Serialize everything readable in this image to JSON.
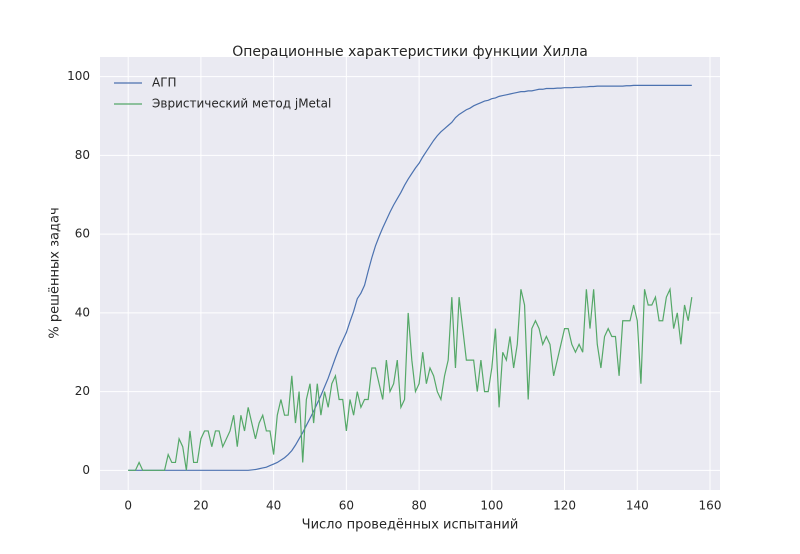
{
  "chart_data": {
    "type": "line",
    "title": "Операционные характеристики функции Хилла",
    "xlabel": "Число проведённых испытаний",
    "ylabel": "% решённых задач",
    "x": [
      0,
      1,
      2,
      3,
      4,
      5,
      6,
      7,
      8,
      9,
      10,
      11,
      12,
      13,
      14,
      15,
      16,
      17,
      18,
      19,
      20,
      21,
      22,
      23,
      24,
      25,
      26,
      27,
      28,
      29,
      30,
      31,
      32,
      33,
      34,
      35,
      36,
      37,
      38,
      39,
      40,
      41,
      42,
      43,
      44,
      45,
      46,
      47,
      48,
      49,
      50,
      51,
      52,
      53,
      54,
      55,
      56,
      57,
      58,
      59,
      60,
      61,
      62,
      63,
      64,
      65,
      66,
      67,
      68,
      69,
      70,
      71,
      72,
      73,
      74,
      75,
      76,
      77,
      78,
      79,
      80,
      81,
      82,
      83,
      84,
      85,
      86,
      87,
      88,
      89,
      90,
      91,
      92,
      93,
      94,
      95,
      96,
      97,
      98,
      99,
      100,
      101,
      102,
      103,
      104,
      105,
      106,
      107,
      108,
      109,
      110,
      111,
      112,
      113,
      114,
      115,
      116,
      117,
      118,
      119,
      120,
      121,
      122,
      123,
      124,
      125,
      126,
      127,
      128,
      129,
      130,
      131,
      132,
      133,
      134,
      135,
      136,
      137,
      138,
      139,
      140,
      141,
      142,
      143,
      144,
      145,
      146,
      147,
      148,
      149,
      150,
      151,
      152,
      153,
      154,
      155
    ],
    "series": [
      {
        "name": "АГП",
        "color": "#4c72b0",
        "values": [
          0,
          0,
          0,
          0,
          0,
          0,
          0,
          0,
          0,
          0,
          0,
          0,
          0,
          0,
          0,
          0,
          0,
          0,
          0,
          0,
          0,
          0,
          0,
          0,
          0,
          0,
          0,
          0,
          0,
          0,
          0,
          0,
          0,
          0,
          0.1,
          0.2,
          0.4,
          0.6,
          0.8,
          1.2,
          1.6,
          2,
          2.6,
          3.2,
          4,
          5,
          6.4,
          8,
          9.6,
          11.4,
          13.2,
          15,
          17,
          19,
          21.2,
          23.4,
          26,
          28.6,
          31,
          33,
          35,
          37.8,
          40.4,
          43.6,
          45,
          47,
          50.6,
          54,
          57,
          59.4,
          61.6,
          63.6,
          65.6,
          67.4,
          69,
          70.6,
          72.4,
          74,
          75.4,
          76.8,
          78,
          79.6,
          81,
          82.4,
          83.8,
          85,
          86,
          86.8,
          87.6,
          88.4,
          89.6,
          90.4,
          91,
          91.6,
          92,
          92.6,
          93,
          93.4,
          93.8,
          94,
          94.4,
          94.6,
          95,
          95.2,
          95.4,
          95.6,
          95.8,
          96,
          96.2,
          96.2,
          96.4,
          96.4,
          96.6,
          96.8,
          96.8,
          97,
          97,
          97,
          97.1,
          97.1,
          97.2,
          97.2,
          97.2,
          97.3,
          97.3,
          97.4,
          97.4,
          97.5,
          97.5,
          97.6,
          97.6,
          97.6,
          97.6,
          97.6,
          97.6,
          97.6,
          97.6,
          97.7,
          97.7,
          97.8,
          97.8,
          97.8,
          97.8,
          97.8,
          97.8,
          97.8,
          97.8,
          97.8,
          97.8,
          97.8,
          97.8,
          97.8,
          97.8,
          97.8,
          97.8,
          97.8
        ]
      },
      {
        "name": "Эвристический метод jMetal",
        "color": "#55a868",
        "values": [
          0,
          0,
          0,
          2,
          0,
          0,
          0,
          0,
          0,
          0,
          0,
          4,
          2,
          2,
          8,
          6,
          0,
          10,
          2,
          2,
          8,
          10,
          10,
          6,
          10,
          10,
          6,
          8,
          10,
          14,
          6,
          14,
          10,
          16,
          12,
          8,
          12,
          14,
          10,
          10,
          4,
          14,
          18,
          14,
          14,
          24,
          12,
          20,
          2,
          18,
          22,
          12,
          22,
          14,
          20,
          16,
          22,
          24,
          18,
          18,
          10,
          18,
          14,
          20,
          16,
          18,
          18,
          26,
          26,
          22,
          18,
          28,
          20,
          22,
          28,
          16,
          18,
          40,
          28,
          20,
          22,
          30,
          22,
          26,
          24,
          20,
          18,
          24,
          28,
          44,
          26,
          44,
          36,
          28,
          28,
          28,
          20,
          28,
          20,
          20,
          26,
          36,
          16,
          30,
          28,
          34,
          26,
          32,
          46,
          42,
          18,
          36,
          38,
          36,
          32,
          34,
          32,
          24,
          28,
          32,
          36,
          36,
          32,
          30,
          32,
          30,
          46,
          36,
          46,
          32,
          26,
          34,
          36,
          34,
          34,
          24,
          38,
          38,
          38,
          42,
          38,
          22,
          46,
          42,
          42,
          44,
          38,
          38,
          44,
          46,
          36,
          40,
          32,
          42,
          38,
          44
        ]
      }
    ],
    "xlim": [
      -7.75,
      162.75
    ],
    "ylim": [
      -5,
      105
    ],
    "xticks": [
      0,
      20,
      40,
      60,
      80,
      100,
      120,
      140,
      160
    ],
    "yticks": [
      0,
      20,
      40,
      60,
      80,
      100
    ],
    "grid": true,
    "legend": "upper-left"
  }
}
